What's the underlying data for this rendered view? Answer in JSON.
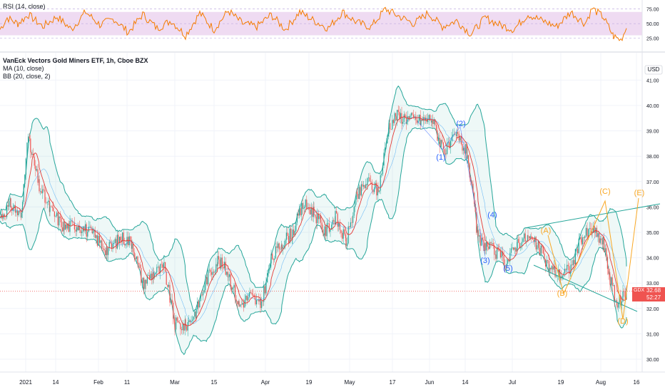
{
  "chart_data": [
    {
      "type": "line",
      "title": "RSI (14, close)",
      "ylim": [
        5,
        88
      ],
      "y_ticks": [
        "75.00",
        "50.00",
        "25.00"
      ],
      "band": [
        30,
        70
      ],
      "band_color": "#e1bee7",
      "line_color": "#f57c00",
      "grid": true,
      "x": [
        0,
        10,
        25,
        40,
        60,
        80,
        100,
        120,
        140,
        160,
        180,
        200,
        220,
        240,
        260,
        280,
        300,
        320,
        340,
        360,
        380,
        400,
        420,
        440,
        460,
        480,
        500,
        520,
        540,
        560,
        580,
        600,
        620,
        640,
        660,
        680,
        700,
        720,
        740,
        760,
        780,
        800,
        820,
        830,
        845,
        860,
        870,
        878
      ],
      "values": [
        40,
        60,
        50,
        65,
        45,
        62,
        40,
        70,
        48,
        58,
        35,
        66,
        42,
        55,
        30,
        68,
        40,
        72,
        50,
        45,
        65,
        40,
        70,
        55,
        42,
        70,
        52,
        44,
        75,
        62,
        50,
        68,
        45,
        55,
        32,
        60,
        48,
        40,
        66,
        55,
        45,
        70,
        50,
        76,
        62,
        28,
        22,
        42
      ]
    },
    {
      "type": "candlestick",
      "title": "VanEck Vectors Gold Miners ETF, 1h, Cboe BZX",
      "indicators": [
        "MA (10, close)",
        "BB (20, close, 2)"
      ],
      "currency": "USD",
      "ylim": [
        29.5,
        41.7
      ],
      "y_ticks": [
        "41.00",
        "40.00",
        "39.00",
        "38.00",
        "37.00",
        "36.00",
        "35.00",
        "34.00",
        "33.00",
        "32.00",
        "31.00",
        "30.00"
      ],
      "x_ticks": [
        "2021",
        "14",
        "Feb",
        "11",
        "Mar",
        "15",
        "Apr",
        "19",
        "May",
        "17",
        "Jun",
        "14",
        "Jul",
        "19",
        "Aug",
        "16"
      ],
      "last_price": {
        "symbol": "GDX",
        "value": "32.68",
        "countdown": "52:27"
      },
      "bb_color": "#26a69a",
      "ma_color": "#e53935",
      "grid": true,
      "x": [
        0,
        15,
        30,
        38,
        45,
        55,
        70,
        90,
        110,
        130,
        150,
        170,
        185,
        200,
        215,
        230,
        245,
        260,
        275,
        290,
        305,
        320,
        335,
        350,
        365,
        380,
        395,
        410,
        425,
        440,
        455,
        470,
        485,
        500,
        515,
        530,
        545,
        555,
        570,
        590,
        605,
        615,
        625,
        640,
        655,
        670,
        680,
        695,
        710,
        725,
        740,
        755,
        770,
        785,
        800,
        815,
        830,
        845,
        855,
        865,
        878
      ],
      "close": [
        35.6,
        36.1,
        35.6,
        38.8,
        38.0,
        36.8,
        35.9,
        35.2,
        35.3,
        34.9,
        34.3,
        34.8,
        34.6,
        33.0,
        33.4,
        33.6,
        31.4,
        31.3,
        31.9,
        33.2,
        33.9,
        33.4,
        32.1,
        32.5,
        32.1,
        33.9,
        34.6,
        35.0,
        36.1,
        35.8,
        35.0,
        35.6,
        34.6,
        36.4,
        37.0,
        36.6,
        39.2,
        39.6,
        39.5,
        39.4,
        39.5,
        38.7,
        38.2,
        38.8,
        38.1,
        34.7,
        34.5,
        34.2,
        33.8,
        34.6,
        34.8,
        34.4,
        33.6,
        33.3,
        33.6,
        34.8,
        35.1,
        34.6,
        33.2,
        32.1,
        32.68
      ]
    }
  ],
  "annotations": {
    "blue_labels": [
      "(1)",
      "(2)",
      "(3)",
      "(4)",
      "(5)"
    ],
    "orange_labels": [
      "(A)",
      "(B)",
      "(C)",
      "(D)",
      "(E)"
    ],
    "blue_color": "#2962ff",
    "orange_color": "#f9a825",
    "trendline_color": "#26a69a"
  }
}
